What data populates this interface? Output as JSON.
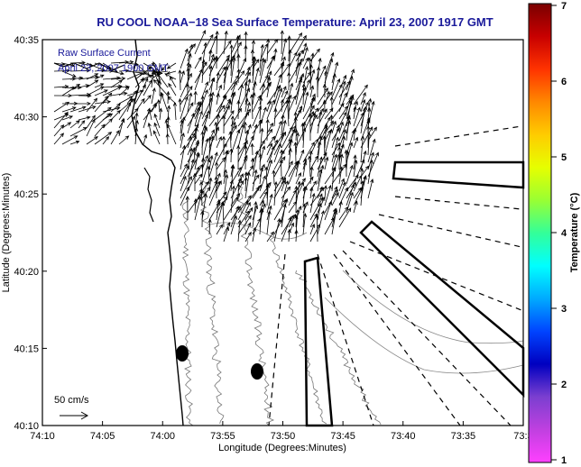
{
  "title": "RU COOL  NOAA−18  Sea Surface Temperature:  April 23, 2007 1917 GMT",
  "legend": {
    "line1": "Raw Surface Current",
    "line2": "April 23, 2007 1900 GMT",
    "scale_label": "50 cm/s"
  },
  "axes": {
    "xlabel": "Longitude (Degrees:Minutes)",
    "ylabel": "Latitude (Degrees:Minutes)",
    "x_ticks": [
      "74:10",
      "74:05",
      "74:00",
      "73:55",
      "73:50",
      "73:45",
      "73:40",
      "73:35",
      "73:3"
    ],
    "y_ticks": [
      "40:35",
      "40:30",
      "40:25",
      "40:20",
      "40:15",
      "40:10"
    ]
  },
  "colorbar": {
    "label": "Temperature (°C)",
    "ticks": [
      "7",
      "6",
      "5",
      "4",
      "3",
      "2",
      "1"
    ],
    "colors": [
      "#7a0000",
      "#c80000",
      "#ff3300",
      "#ff8800",
      "#ffcc00",
      "#e6ff00",
      "#99ff33",
      "#33ff99",
      "#00ffff",
      "#00aaff",
      "#0044ff",
      "#0000c0",
      "#7b3fd0",
      "#c040e0",
      "#ff40ff"
    ]
  },
  "icons": {
    "markers": "black-ellipse-icon",
    "vectors": "current-arrow-icon"
  }
}
